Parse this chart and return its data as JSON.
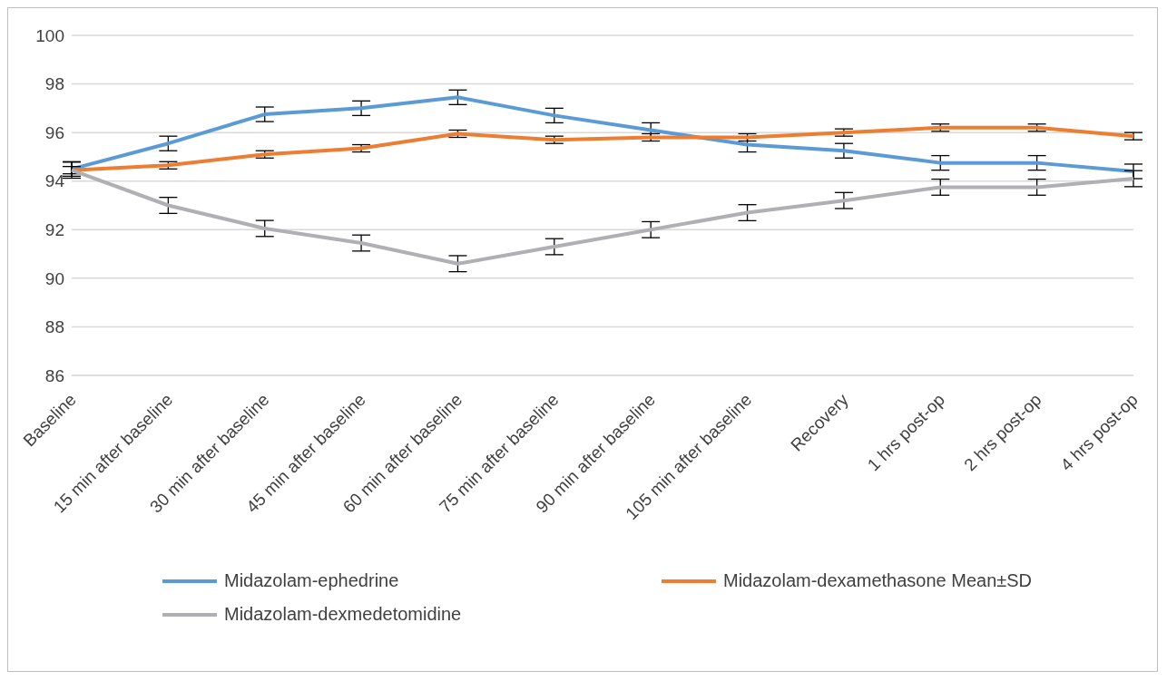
{
  "chart_data": {
    "type": "line",
    "categories": [
      "Baseline",
      "15 min after baseline",
      "30 min after baseline",
      "45 min after baseline",
      "60 min after baseline",
      "75 min after baseline",
      "90 min after baseline",
      "105 min after baseline",
      "Recovery",
      "1 hrs post-op",
      "2 hrs post-op",
      "4 hrs post-op"
    ],
    "series": [
      {
        "name": "Midazolam-ephedrine",
        "color": "#5b9bd5",
        "values": [
          94.5,
          95.55,
          96.75,
          97.0,
          97.45,
          96.7,
          96.1,
          95.5,
          95.25,
          94.75,
          94.75,
          94.4
        ],
        "errors": [
          0.3,
          0.3,
          0.3,
          0.3,
          0.3,
          0.3,
          0.3,
          0.3,
          0.3,
          0.3,
          0.3,
          0.3
        ]
      },
      {
        "name": "Midazolam-dexamethasone Mean±SD",
        "color": "#ed7d31",
        "values": [
          94.45,
          94.65,
          95.1,
          95.35,
          95.95,
          95.7,
          95.8,
          95.8,
          96.0,
          96.2,
          96.2,
          95.85
        ],
        "errors": [
          0.15,
          0.15,
          0.15,
          0.15,
          0.15,
          0.15,
          0.15,
          0.15,
          0.15,
          0.15,
          0.15,
          0.15
        ]
      },
      {
        "name": "Midazolam-dexmedetomidine",
        "color": "#b0b0b4",
        "values": [
          94.45,
          93.0,
          92.05,
          91.45,
          90.6,
          91.3,
          92.0,
          92.7,
          93.2,
          93.75,
          93.75,
          94.1
        ],
        "errors": [
          0.33,
          0.33,
          0.33,
          0.33,
          0.33,
          0.33,
          0.33,
          0.33,
          0.33,
          0.33,
          0.33,
          0.33
        ]
      }
    ],
    "ylim": [
      86,
      100
    ],
    "yticks": [
      86,
      88,
      90,
      92,
      94,
      96,
      98,
      100
    ],
    "grid": "y",
    "legend": "bottom",
    "marker": "none",
    "line_style": "solid"
  }
}
